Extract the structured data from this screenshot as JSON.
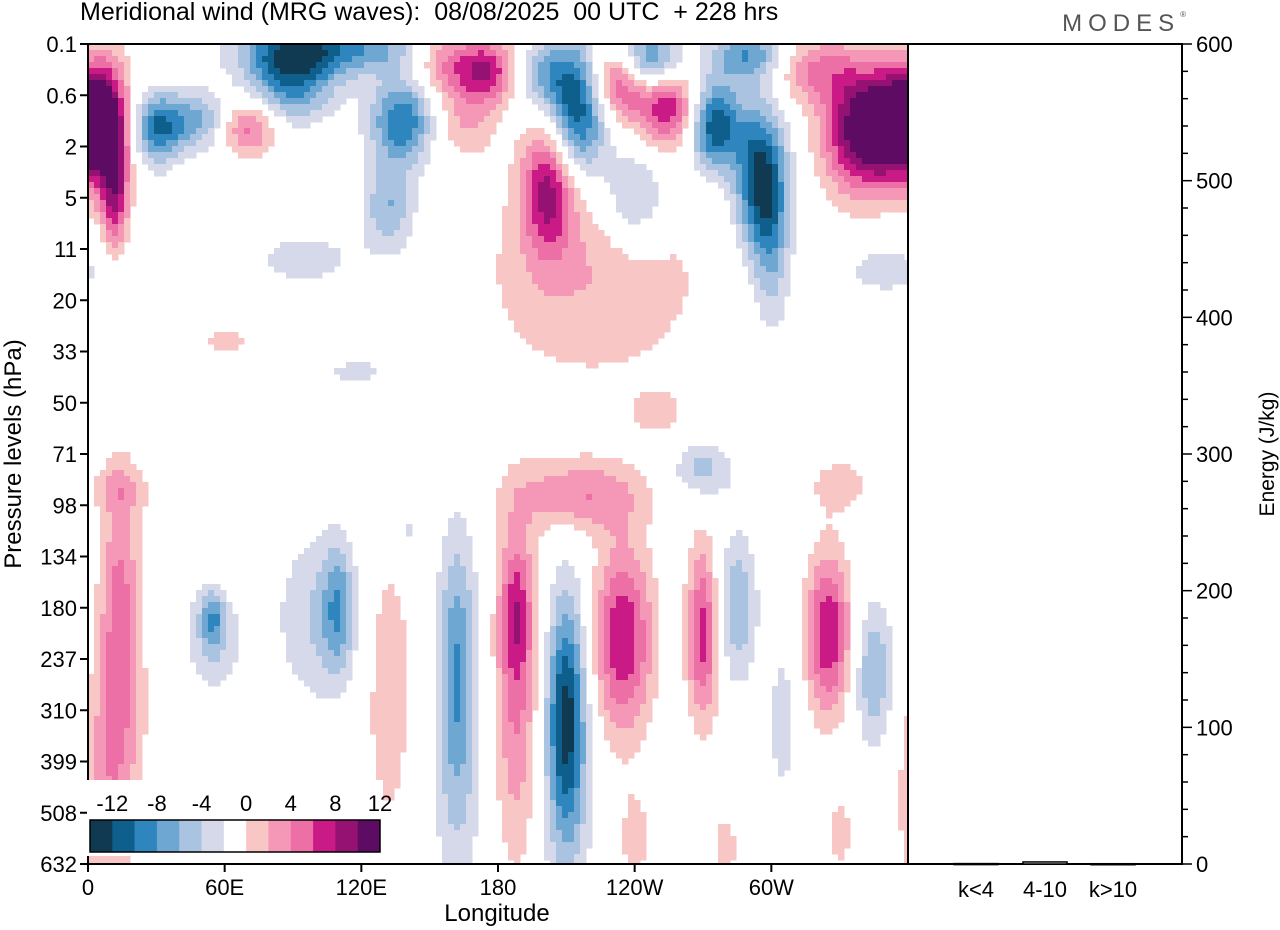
{
  "header": {
    "title": "Meridional wind (MRG waves):  08/08/2025  00 UTC  + 228 hrs",
    "brand": "MODES",
    "brand_mark": "®"
  },
  "colors": {
    "neg": [
      "#0f3a52",
      "#0e5f8c",
      "#2f85bd",
      "#6ea7d1",
      "#a9c3e0",
      "#d5d9ea"
    ],
    "zero": "#ffffff",
    "pos": [
      "#f9c6c6",
      "#f597b7",
      "#ec6fa6",
      "#c91a86",
      "#951273",
      "#5e0b63"
    ]
  },
  "chart_data": [
    {
      "type": "heatmap",
      "title": "Meridional wind (MRG waves)",
      "xlabel": "Longitude",
      "ylabel": "Pressure levels (hPa)",
      "x_ticks": [
        "0",
        "60E",
        "120E",
        "180",
        "120W",
        "60W"
      ],
      "x_tick_values": [
        0,
        60,
        120,
        180,
        240,
        300
      ],
      "xlim": [
        0,
        360
      ],
      "y_levels": [
        "0.1",
        "0.6",
        "2",
        "5",
        "11",
        "20",
        "33",
        "50",
        "71",
        "98",
        "134",
        "180",
        "237",
        "310",
        "399",
        "508",
        "632"
      ],
      "colorbar": {
        "labels": [
          "-12",
          "-8",
          "-4",
          "0",
          "4",
          "8",
          "12"
        ],
        "bounds": [
          -14,
          -12,
          -10,
          -8,
          -6,
          -4,
          -2,
          2,
          4,
          6,
          8,
          10,
          12,
          14
        ]
      },
      "features": [
        {
          "lon": 8,
          "level": 1.6,
          "value": 14,
          "sx": 7,
          "sy": 0.9
        },
        {
          "lon": 12,
          "level": 3.0,
          "value": 8,
          "sx": 4,
          "sy": 0.8
        },
        {
          "lon": 30,
          "level": 1.7,
          "value": -8,
          "sx": 7,
          "sy": 0.5
        },
        {
          "lon": 46,
          "level": 1.5,
          "value": -7,
          "sx": 12,
          "sy": 0.4
        },
        {
          "lon": 70,
          "level": 1.6,
          "value": 8,
          "sx": 9,
          "sy": 0.4
        },
        {
          "lon": 88,
          "level": 0.6,
          "value": -14,
          "sx": 14,
          "sy": 0.55
        },
        {
          "lon": 110,
          "level": 0.1,
          "value": -8,
          "sx": 28,
          "sy": 0.35
        },
        {
          "lon": 85,
          "level": 0.6,
          "value": 4,
          "sx": 14,
          "sy": 0.4
        },
        {
          "lon": 138,
          "level": 1.5,
          "value": -10,
          "sx": 10,
          "sy": 0.6
        },
        {
          "lon": 132,
          "level": 3.2,
          "value": -6,
          "sx": 8,
          "sy": 0.6
        },
        {
          "lon": 155,
          "level": 0.3,
          "value": 6,
          "sx": 10,
          "sy": 0.45
        },
        {
          "lon": 175,
          "level": 0.5,
          "value": 10,
          "sx": 10,
          "sy": 0.45
        },
        {
          "lon": 165,
          "level": 1.5,
          "value": 4,
          "sx": 10,
          "sy": 0.5
        },
        {
          "lon": 215,
          "level": 1.3,
          "value": -12,
          "sx": 9,
          "sy": 0.9
        },
        {
          "lon": 200,
          "level": 0.6,
          "value": -6,
          "sx": 10,
          "sy": 0.5
        },
        {
          "lon": 202,
          "level": 2.8,
          "value": 10,
          "sx": 8,
          "sy": 0.9
        },
        {
          "lon": 245,
          "level": 0.4,
          "value": -13,
          "sx": 10,
          "sy": 0.45
        },
        {
          "lon": 235,
          "level": 0.7,
          "value": 12,
          "sx": 10,
          "sy": 0.5
        },
        {
          "lon": 255,
          "level": 1.2,
          "value": 10,
          "sx": 9,
          "sy": 0.55
        },
        {
          "lon": 240,
          "level": 3.0,
          "value": -6,
          "sx": 10,
          "sy": 0.7
        },
        {
          "lon": 275,
          "level": 1.6,
          "value": -12,
          "sx": 8,
          "sy": 0.6
        },
        {
          "lon": 295,
          "level": 2.6,
          "value": -12,
          "sx": 8,
          "sy": 1.0
        },
        {
          "lon": 290,
          "level": 0.2,
          "value": -8,
          "sx": 12,
          "sy": 0.4
        },
        {
          "lon": 318,
          "level": 0.5,
          "value": 6,
          "sx": 14,
          "sy": 0.45
        },
        {
          "lon": 340,
          "level": 1.7,
          "value": 14,
          "sx": 12,
          "sy": 0.85
        },
        {
          "lon": 355,
          "level": 1.5,
          "value": 12,
          "sx": 8,
          "sy": 0.7
        },
        {
          "lon": 222,
          "level": 4.5,
          "value": 4,
          "sx": 35,
          "sy": 1.5
        },
        {
          "lon": 95,
          "level": 4.2,
          "value": -3,
          "sx": 18,
          "sy": 0.4
        },
        {
          "lon": 300,
          "level": 4.0,
          "value": -5,
          "sx": 6,
          "sy": 1.2
        },
        {
          "lon": 350,
          "level": 4.4,
          "value": -3,
          "sx": 15,
          "sy": 0.4
        },
        {
          "lon": 60,
          "level": 5.8,
          "value": 3,
          "sx": 8,
          "sy": 0.2
        },
        {
          "lon": 118,
          "level": 6.4,
          "value": -3,
          "sx": 10,
          "sy": 0.2
        },
        {
          "lon": 250,
          "level": 7.2,
          "value": 3,
          "sx": 8,
          "sy": 0.3
        },
        {
          "lon": 215,
          "level": 8.8,
          "value": 6,
          "sx": 20,
          "sy": 0.5
        },
        {
          "lon": 270,
          "level": 8.3,
          "value": -5,
          "sx": 9,
          "sy": 0.4
        },
        {
          "lon": 330,
          "level": 8.6,
          "value": 3,
          "sx": 10,
          "sy": 0.4
        },
        {
          "lon": 15,
          "level": 8.7,
          "value": 3,
          "sx": 10,
          "sy": 0.3
        },
        {
          "lon": 140,
          "level": 9.5,
          "value": -3,
          "sx": 6,
          "sy": 0.5
        },
        {
          "lon": 14,
          "level": 11.0,
          "value": 6,
          "sx": 6,
          "sy": 2.0
        },
        {
          "lon": 14,
          "level": 13.5,
          "value": 3,
          "sx": 9,
          "sy": 2.0
        },
        {
          "lon": 5,
          "level": 14.8,
          "value": 3,
          "sx": 8,
          "sy": 1.5
        },
        {
          "lon": 60,
          "level": 10.3,
          "value": 3,
          "sx": 8,
          "sy": 0.4
        },
        {
          "lon": 55,
          "level": 11.5,
          "value": -3,
          "sx": 12,
          "sy": 1.0
        },
        {
          "lon": 55,
          "level": 11.2,
          "value": -6,
          "sx": 4,
          "sy": 0.5
        },
        {
          "lon": 100,
          "level": 11.2,
          "value": -4,
          "sx": 12,
          "sy": 1.2
        },
        {
          "lon": 110,
          "level": 11.0,
          "value": -6,
          "sx": 5,
          "sy": 0.9
        },
        {
          "lon": 132,
          "level": 12.5,
          "value": 3,
          "sx": 9,
          "sy": 2.5
        },
        {
          "lon": 162,
          "level": 12.0,
          "value": -7,
          "sx": 6,
          "sy": 1.8
        },
        {
          "lon": 162,
          "level": 14.5,
          "value": -3,
          "sx": 8,
          "sy": 2.0
        },
        {
          "lon": 188,
          "level": 12.8,
          "value": 6,
          "sx": 7,
          "sy": 2.2
        },
        {
          "lon": 188,
          "level": 11.0,
          "value": 6,
          "sx": 5,
          "sy": 1.0
        },
        {
          "lon": 210,
          "level": 13.0,
          "value": -12,
          "sx": 6,
          "sy": 1.6
        },
        {
          "lon": 210,
          "level": 15.0,
          "value": -3,
          "sx": 8,
          "sy": 1.6
        },
        {
          "lon": 235,
          "level": 11.6,
          "value": 10,
          "sx": 9,
          "sy": 1.3
        },
        {
          "lon": 270,
          "level": 11.5,
          "value": 9,
          "sx": 5,
          "sy": 1.2
        },
        {
          "lon": 285,
          "level": 11.0,
          "value": -6,
          "sx": 6,
          "sy": 1.0
        },
        {
          "lon": 325,
          "level": 11.5,
          "value": 10,
          "sx": 7,
          "sy": 1.1
        },
        {
          "lon": 345,
          "level": 12.3,
          "value": -6,
          "sx": 6,
          "sy": 1.0
        },
        {
          "lon": 305,
          "level": 13.2,
          "value": -3,
          "sx": 5,
          "sy": 1.2
        },
        {
          "lon": 280,
          "level": 15.7,
          "value": 3,
          "sx": 4,
          "sy": 0.6
        },
        {
          "lon": 240,
          "level": 15.5,
          "value": 3,
          "sx": 5,
          "sy": 0.7
        },
        {
          "lon": 330,
          "level": 15.4,
          "value": 3,
          "sx": 4,
          "sy": 0.6
        }
      ]
    },
    {
      "type": "bar",
      "ylabel": "Energy (J/kg)",
      "categories": [
        "k<4",
        "4-10",
        "k>10"
      ],
      "values": [
        0.3,
        1.5,
        0.2
      ],
      "ylim": [
        0,
        600
      ],
      "y_ticks": [
        "0",
        "100",
        "200",
        "300",
        "400",
        "500",
        "600"
      ]
    }
  ]
}
